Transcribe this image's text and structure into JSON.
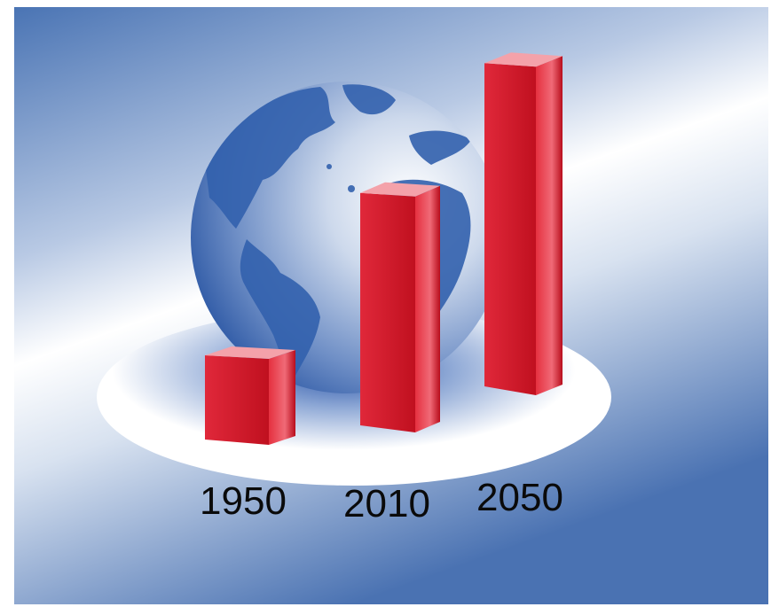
{
  "chart_data": {
    "type": "bar",
    "categories": [
      "1950",
      "2010",
      "2050"
    ],
    "values": [
      2.5,
      6.9,
      9.6
    ],
    "title": "",
    "xlabel": "",
    "ylabel": "",
    "ylim": [
      0,
      10
    ],
    "grid": false,
    "legend": "none",
    "bar_color": "#d9142a",
    "background_colors": [
      "#4a74b4",
      "#ffffff"
    ],
    "decoration": "globe-icon"
  }
}
